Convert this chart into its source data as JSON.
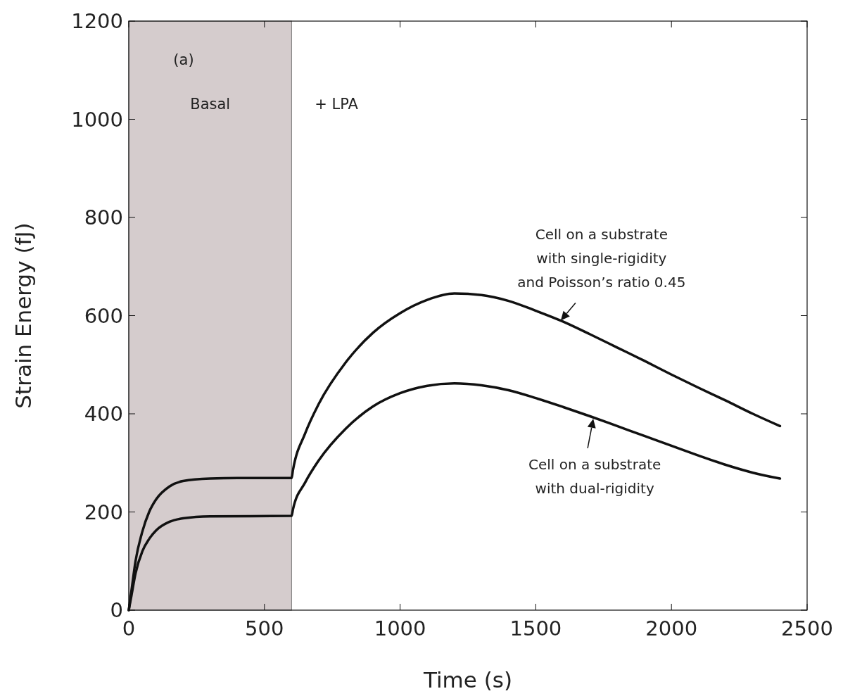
{
  "chart_data": {
    "type": "line",
    "xlabel": "Time (s)",
    "ylabel": "Strain Energy (fJ)",
    "xlim": [
      0,
      2500
    ],
    "ylim": [
      0,
      1200
    ],
    "xticks": [
      0,
      500,
      1000,
      1500,
      2000,
      2500
    ],
    "yticks": [
      0,
      200,
      400,
      600,
      800,
      1000,
      1200
    ],
    "grid": false,
    "marker": "none",
    "line_style": "solid",
    "bands": [
      {
        "axis": "x",
        "from": 0,
        "to": 600,
        "label": "Basal",
        "color": "#d5cccd"
      }
    ],
    "annotations": [
      "(a)",
      "+ LPA",
      {
        "text": "Cell on a substrate\nwith single-rigidity\nand Poisson’s ratio 0.45",
        "x": 1592,
        "y": 590
      },
      {
        "text": "Cell on a substrate\nwith dual-rigidity",
        "x": 1712,
        "y": 390
      }
    ],
    "series": [
      {
        "color": "#111111",
        "x": [
          0,
          10,
          25,
          50,
          75,
          100,
          150,
          200,
          300,
          400,
          600,
          605,
          650,
          700,
          800,
          900,
          1000,
          1100,
          1200,
          1300,
          1400,
          1500,
          1600,
          1700,
          1800,
          1900,
          2000,
          2100,
          2200,
          2300,
          2400
        ],
        "values": [
          0,
          40,
          100,
          160,
          200,
          225,
          252,
          263,
          268,
          269,
          269,
          285,
          360,
          420,
          505,
          565,
          605,
          632,
          645,
          642,
          630,
          610,
          588,
          562,
          535,
          508,
          480,
          453,
          427,
          400,
          375
        ]
      },
      {
        "color": "#111111",
        "x": [
          0,
          10,
          25,
          50,
          75,
          100,
          150,
          200,
          300,
          600,
          605,
          650,
          700,
          800,
          900,
          1000,
          1100,
          1200,
          1300,
          1400,
          1500,
          1600,
          1700,
          1800,
          1900,
          2000,
          2100,
          2200,
          2300,
          2400
        ],
        "values": [
          0,
          30,
          75,
          120,
          145,
          162,
          180,
          187,
          191,
          192,
          205,
          260,
          305,
          370,
          415,
          442,
          457,
          462,
          458,
          448,
          432,
          414,
          395,
          375,
          355,
          335,
          315,
          296,
          280,
          268
        ]
      }
    ]
  }
}
